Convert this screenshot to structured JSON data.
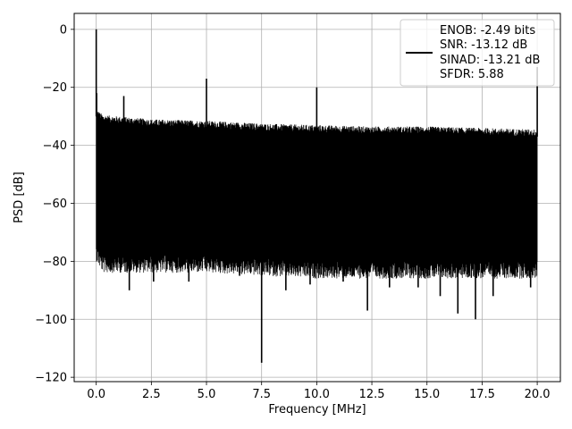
{
  "chart_data": {
    "type": "line",
    "xlabel": "Frequency [MHz]",
    "ylabel": "PSD [dB]",
    "xlim": [
      -1.0,
      21.05
    ],
    "ylim": [
      -121.5,
      5.5
    ],
    "grid": true,
    "x_ticks": [
      0.0,
      2.5,
      5.0,
      7.5,
      10.0,
      12.5,
      15.0,
      17.5,
      20.0
    ],
    "x_tick_labels": [
      "0.0",
      "2.5",
      "5.0",
      "7.5",
      "10.0",
      "12.5",
      "15.0",
      "17.5",
      "20.0"
    ],
    "y_ticks": [
      0,
      -20,
      -40,
      -60,
      -80,
      -100,
      -120
    ],
    "y_tick_labels": [
      "0",
      "−20",
      "−40",
      "−60",
      "−80",
      "−100",
      "−120"
    ],
    "line_color": "#000000",
    "legend": {
      "placement": "top-right",
      "entries": [
        "ENOB: -2.49 bits",
        "SNR: -13.12 dB",
        "SINAD: -13.21 dB",
        "SFDR: 5.88"
      ]
    },
    "series": [
      {
        "upper_envelope": {
          "x": [
            0.0,
            0.3,
            2.5,
            5.0,
            7.5,
            10.0,
            12.5,
            15.0,
            17.5,
            20.0
          ],
          "y": [
            -30,
            -32,
            -33.5,
            -34,
            -35,
            -35.5,
            -36,
            -36,
            -36.5,
            -37
          ]
        },
        "lower_envelope": {
          "x": [
            0.0,
            0.3,
            2.5,
            5.0,
            7.5,
            10.0,
            12.5,
            15.0,
            17.5,
            20.0
          ],
          "y": [
            -74,
            -78,
            -78,
            -78,
            -79,
            -80,
            -80,
            -80,
            -80,
            -80
          ]
        },
        "peaks": [
          {
            "x": 0.0,
            "y": 0
          },
          {
            "x": 0.02,
            "y": -22
          },
          {
            "x": 1.25,
            "y": -23
          },
          {
            "x": 5.0,
            "y": -17
          },
          {
            "x": 10.0,
            "y": -20
          },
          {
            "x": 20.0,
            "y": -13
          }
        ],
        "dips": [
          {
            "x": 1.5,
            "y": -90
          },
          {
            "x": 2.6,
            "y": -87
          },
          {
            "x": 4.2,
            "y": -87
          },
          {
            "x": 6.5,
            "y": -85
          },
          {
            "x": 7.5,
            "y": -115
          },
          {
            "x": 8.6,
            "y": -90
          },
          {
            "x": 9.7,
            "y": -88
          },
          {
            "x": 11.2,
            "y": -87
          },
          {
            "x": 12.3,
            "y": -97
          },
          {
            "x": 13.3,
            "y": -89
          },
          {
            "x": 14.6,
            "y": -89
          },
          {
            "x": 15.6,
            "y": -92
          },
          {
            "x": 16.4,
            "y": -98
          },
          {
            "x": 17.2,
            "y": -100
          },
          {
            "x": 18.0,
            "y": -92
          },
          {
            "x": 19.7,
            "y": -89
          }
        ]
      }
    ]
  }
}
